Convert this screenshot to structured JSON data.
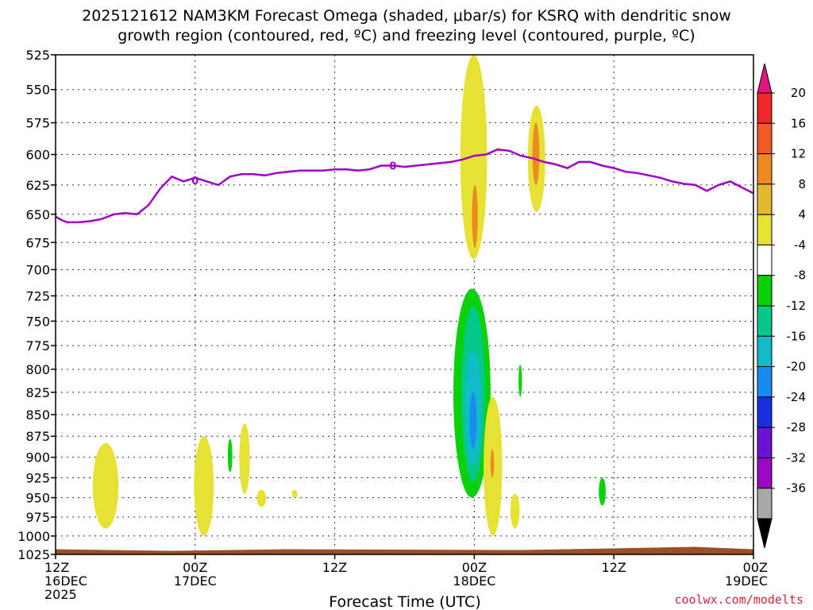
{
  "chart_data": {
    "type": "heatmap",
    "title_line1": "2025121612 NAM3KM Forecast Omega (shaded, μbar/s) for KSRQ with dendritic snow",
    "title_line2": "growth region (contoured, red, ºC) and freezing level (contoured, purple, ºC)",
    "xlabel": "Forecast Time (UTC)",
    "credit": "coolwx.com/modelts",
    "x_range_hours": [
      0,
      60
    ],
    "y_range_mb": [
      525,
      1025
    ],
    "y_ticks": [
      "525",
      "550",
      "575",
      "600",
      "625",
      "650",
      "675",
      "700",
      "725",
      "750",
      "775",
      "800",
      "825",
      "850",
      "875",
      "900",
      "925",
      "950",
      "975",
      "1000",
      "1025"
    ],
    "x_ticks": [
      {
        "hour": 0,
        "line1": "12Z",
        "line2": "16DEC",
        "line3": "2025"
      },
      {
        "hour": 12,
        "line1": "00Z",
        "line2": "17DEC",
        "line3": ""
      },
      {
        "hour": 24,
        "line1": "12Z",
        "line2": "",
        "line3": ""
      },
      {
        "hour": 36,
        "line1": "00Z",
        "line2": "18DEC",
        "line3": ""
      },
      {
        "hour": 48,
        "line1": "12Z",
        "line2": "",
        "line3": ""
      },
      {
        "hour": 60,
        "line1": "00Z",
        "line2": "19DEC",
        "line3": ""
      }
    ],
    "grid": true,
    "colorbar": {
      "labels": [
        "20",
        "16",
        "12",
        "8",
        "4",
        "-4",
        "-8",
        "-12",
        "-16",
        "-20",
        "-24",
        "-28",
        "-32",
        "-36"
      ],
      "colors": [
        "#e0157e",
        "#f0282a",
        "#f05a24",
        "#ee8a22",
        "#e4b830",
        "#e6e234",
        "#ffffff",
        "#0ad20a",
        "#06c88a",
        "#10bcc8",
        "#1a8cf0",
        "#1830e0",
        "#6a14d2",
        "#9a0ac2",
        "#a8a8a8",
        "#000000"
      ]
    },
    "freezing_level": {
      "color": "#a100c8",
      "label": "0",
      "points": [
        [
          0,
          652
        ],
        [
          0.5,
          655
        ],
        [
          1,
          657
        ],
        [
          2,
          657
        ],
        [
          3,
          656
        ],
        [
          4,
          654
        ],
        [
          5,
          650
        ],
        [
          6,
          649
        ],
        [
          7,
          650
        ],
        [
          8,
          642
        ],
        [
          9,
          628
        ],
        [
          10,
          618
        ],
        [
          11,
          622
        ],
        [
          12,
          619
        ],
        [
          13,
          622
        ],
        [
          14,
          625
        ],
        [
          15,
          618
        ],
        [
          16,
          616
        ],
        [
          17,
          616
        ],
        [
          18,
          617
        ],
        [
          19,
          615
        ],
        [
          20,
          614
        ],
        [
          21,
          613
        ],
        [
          22,
          613
        ],
        [
          23,
          613
        ],
        [
          24,
          612
        ],
        [
          25,
          612
        ],
        [
          26,
          613
        ],
        [
          27,
          612
        ],
        [
          28,
          609
        ],
        [
          29,
          609
        ],
        [
          30,
          610
        ],
        [
          31,
          609
        ],
        [
          32,
          608
        ],
        [
          33,
          607
        ],
        [
          34,
          606
        ],
        [
          35,
          604
        ],
        [
          36,
          601
        ],
        [
          37,
          600
        ],
        [
          38,
          596
        ],
        [
          39,
          597
        ],
        [
          40,
          601
        ],
        [
          41,
          603
        ],
        [
          42,
          606
        ],
        [
          43,
          608
        ],
        [
          44,
          611
        ],
        [
          45,
          606
        ],
        [
          46,
          606
        ],
        [
          47,
          609
        ],
        [
          48,
          611
        ],
        [
          49,
          614
        ],
        [
          50,
          615
        ],
        [
          51,
          617
        ],
        [
          52,
          619
        ],
        [
          53,
          622
        ],
        [
          54,
          624
        ],
        [
          55,
          625
        ],
        [
          56,
          630
        ],
        [
          57,
          625
        ],
        [
          58,
          622
        ],
        [
          59,
          627
        ],
        [
          60,
          632
        ]
      ]
    },
    "omega_regions": [
      {
        "value": 5,
        "hours": [
          3.2,
          5.4
        ],
        "mb": [
          883,
          990
        ],
        "color": "#e6e234"
      },
      {
        "value": 5,
        "hours": [
          11.9,
          13.6
        ],
        "mb": [
          875,
          1000
        ],
        "color": "#e6e234"
      },
      {
        "value": -6,
        "hours": [
          14.8,
          15.2
        ],
        "mb": [
          878,
          918
        ],
        "color": "#0ad20a"
      },
      {
        "value": 5,
        "hours": [
          15.8,
          16.7
        ],
        "mb": [
          860,
          945
        ],
        "color": "#e6e234"
      },
      {
        "value": 5,
        "hours": [
          17.3,
          18.1
        ],
        "mb": [
          940,
          962
        ],
        "color": "#e6e234"
      },
      {
        "value": 5,
        "hours": [
          20.3,
          20.8
        ],
        "mb": [
          940,
          950
        ],
        "color": "#e6e234"
      },
      {
        "value": 5,
        "hours": [
          34.8,
          37.1
        ],
        "mb": [
          525,
          690
        ],
        "color": "#e6e234"
      },
      {
        "value": 9,
        "hours": [
          35.8,
          36.3
        ],
        "mb": [
          625,
          680
        ],
        "color": "#ee8a22"
      },
      {
        "value": 5,
        "hours": [
          40.6,
          42.1
        ],
        "mb": [
          562,
          648
        ],
        "color": "#e6e234"
      },
      {
        "value": 9,
        "hours": [
          41.0,
          41.6
        ],
        "mb": [
          575,
          625
        ],
        "color": "#ee8a22"
      },
      {
        "value": -6,
        "hours": [
          34.2,
          37.4
        ],
        "mb": [
          718,
          950
        ],
        "color": "#0ad20a"
      },
      {
        "value": -10,
        "hours": [
          34.9,
          36.9
        ],
        "mb": [
          735,
          930
        ],
        "color": "#06c88a"
      },
      {
        "value": -14,
        "hours": [
          35.2,
          36.6
        ],
        "mb": [
          780,
          910
        ],
        "color": "#10bcc8"
      },
      {
        "value": -18,
        "hours": [
          35.6,
          36.2
        ],
        "mb": [
          825,
          890
        ],
        "color": "#1a8cf0"
      },
      {
        "value": 5,
        "hours": [
          36.8,
          38.4
        ],
        "mb": [
          830,
          1000
        ],
        "color": "#e6e234"
      },
      {
        "value": 9,
        "hours": [
          37.4,
          37.7
        ],
        "mb": [
          890,
          925
        ],
        "color": "#ee8a22"
      },
      {
        "value": -6,
        "hours": [
          39.8,
          40.1
        ],
        "mb": [
          795,
          830
        ],
        "color": "#0ad20a"
      },
      {
        "value": 5,
        "hours": [
          39.1,
          39.9
        ],
        "mb": [
          945,
          990
        ],
        "color": "#e6e234"
      },
      {
        "value": -6,
        "hours": [
          46.7,
          47.3
        ],
        "mb": [
          925,
          960
        ],
        "color": "#0ad20a"
      }
    ],
    "ground": {
      "color": "#9a4f28"
    }
  }
}
